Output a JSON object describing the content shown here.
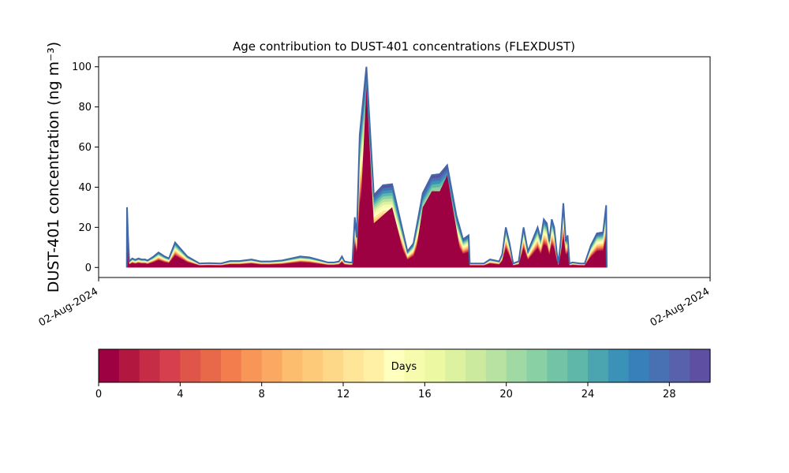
{
  "chart_data": [
    {
      "type": "area",
      "title": "Age contribution to DUST-401 concentrations (FLEXDUST)",
      "ylabel": "DUST-401 concentration (ng m⁻³)",
      "xlabel": "",
      "x_tick_labels": [
        "02-Aug-2024",
        "02-Aug-2024"
      ],
      "y_ticks": [
        0,
        20,
        40,
        60,
        80,
        100
      ],
      "ylim": [
        -5,
        105
      ],
      "xlim": [
        0,
        100
      ],
      "grid": false,
      "legend": "none",
      "x": [
        4.6,
        4.8,
        5.0,
        5.4,
        5.8,
        6.2,
        6.6,
        7.2,
        8.0,
        9.0,
        10.5,
        11.5,
        12.5,
        13.5,
        14.5,
        16.5,
        18.0,
        19.5,
        21.0,
        22.0,
        24.0,
        25.5,
        27.5,
        28.5,
        30.0,
        32.0,
        33.5,
        35.0,
        36.5,
        38.0,
        39.0,
        40.0,
        40.5,
        41.0,
        41.5,
        41.8,
        42.2,
        43.0,
        44.0,
        45.0,
        46.0,
        47.5,
        49.0,
        50.5,
        51.5,
        52.5,
        54.0,
        55.5,
        57.0,
        58.5,
        59.5,
        60.5,
        61.2,
        62.0,
        63.0,
        64.5,
        65.5,
        66.2,
        67.0,
        67.8,
        68.5,
        69.5,
        70.5,
        71.3,
        72.0,
        72.6,
        73.2,
        73.8,
        74.4,
        75.0,
        75.5,
        76.0,
        76.5,
        77.0,
        77.5,
        78.0,
        78.4,
        78.8,
        79.3,
        79.8,
        80.5,
        81.5,
        82.5,
        83.0,
        84.0,
        84.8,
        85.5,
        85.8
      ],
      "series_levels_days": [
        0,
        2,
        4,
        6,
        8,
        10,
        12,
        14,
        16,
        18,
        20,
        22,
        24,
        26,
        28,
        30
      ],
      "total": [
        0,
        30,
        3,
        0,
        3,
        4.5,
        3.5,
        3.5,
        2,
        2.5,
        3.5,
        2.8,
        2.5,
        3,
        3,
        2,
        2.5,
        2.5,
        2,
        2.5,
        2.5,
        2.5,
        2,
        3.5,
        3,
        2.5,
        2.5,
        3,
        3.5,
        3.5,
        4,
        5.5,
        4.5,
        0,
        3.5,
        4.5,
        2,
        3,
        2,
        2,
        3,
        2,
        2,
        1.8,
        1.8,
        1.5,
        1.5,
        2,
        1.8,
        2,
        2.8,
        2,
        2,
        1.8,
        3.5,
        2.8,
        2.5,
        3.5,
        4.5,
        2,
        1.5,
        2.5,
        3,
        2,
        1.5,
        2,
        1.5,
        2.5,
        3,
        3.5,
        2.5,
        3,
        2,
        2,
        2.5,
        2,
        2,
        3,
        2.5,
        2,
        2,
        1.5,
        2,
        2.5,
        2,
        3,
        3,
        0
      ],
      "peaks": [
        {
          "x": 4.6,
          "y": 30
        },
        {
          "x": 42.5,
          "y": 25
        },
        {
          "x": 43.0,
          "y": 66
        },
        {
          "x": 43.8,
          "y": 100
        },
        {
          "x": 45.0,
          "y": 36
        },
        {
          "x": 46.5,
          "y": 41
        },
        {
          "x": 48.0,
          "y": 41.5
        },
        {
          "x": 50.5,
          "y": 8
        },
        {
          "x": 51.5,
          "y": 12
        },
        {
          "x": 53.0,
          "y": 37
        },
        {
          "x": 54.5,
          "y": 46
        },
        {
          "x": 55.8,
          "y": 46.5
        },
        {
          "x": 57.0,
          "y": 51
        },
        {
          "x": 58.5,
          "y": 26
        },
        {
          "x": 59.6,
          "y": 14
        },
        {
          "x": 60.5,
          "y": 16
        },
        {
          "x": 64.0,
          "y": 20
        },
        {
          "x": 66.5,
          "y": 19
        },
        {
          "x": 68.7,
          "y": 20
        },
        {
          "x": 69.5,
          "y": 23.5
        },
        {
          "x": 70.4,
          "y": 23
        },
        {
          "x": 70.8,
          "y": 13.5
        },
        {
          "x": 72.5,
          "y": 32
        },
        {
          "x": 76.0,
          "y": 16.5
        },
        {
          "x": 76.7,
          "y": 17
        },
        {
          "x": 77.1,
          "y": 31
        }
      ],
      "outline_points": [
        [
          4.6,
          0
        ],
        [
          4.65,
          30
        ],
        [
          4.8,
          16
        ],
        [
          5.0,
          3
        ],
        [
          5.5,
          4.5
        ],
        [
          6.0,
          3.8
        ],
        [
          6.5,
          4.5
        ],
        [
          7.0,
          4
        ],
        [
          7.6,
          4
        ],
        [
          8.0,
          3.5
        ],
        [
          9.0,
          5.5
        ],
        [
          9.8,
          7.5
        ],
        [
          10.8,
          5.5
        ],
        [
          11.5,
          4.5
        ],
        [
          12.5,
          12.5
        ],
        [
          13.5,
          9
        ],
        [
          14.5,
          5.5
        ],
        [
          16.5,
          2
        ],
        [
          18.0,
          2.2
        ],
        [
          20.0,
          2
        ],
        [
          21.5,
          3.2
        ],
        [
          23.0,
          3.2
        ],
        [
          25.0,
          4
        ],
        [
          26.5,
          3
        ],
        [
          28.0,
          3
        ],
        [
          30.0,
          3.5
        ],
        [
          31.5,
          4.5
        ],
        [
          33.0,
          5.5
        ],
        [
          34.5,
          5
        ],
        [
          36.0,
          3.8
        ],
        [
          37.5,
          2.5
        ],
        [
          38.5,
          2.5
        ],
        [
          39.3,
          3
        ],
        [
          39.8,
          5.5
        ],
        [
          40.2,
          3
        ],
        [
          41.0,
          2.5
        ],
        [
          41.5,
          2.5
        ],
        [
          41.9,
          25
        ],
        [
          42.2,
          15
        ],
        [
          42.7,
          66
        ],
        [
          43.8,
          100
        ],
        [
          45.0,
          36
        ],
        [
          46.5,
          41
        ],
        [
          48.0,
          41.5
        ],
        [
          50.5,
          8
        ],
        [
          51.5,
          12
        ],
        [
          53.0,
          37
        ],
        [
          54.5,
          46
        ],
        [
          55.8,
          46.5
        ],
        [
          57.0,
          51
        ],
        [
          58.5,
          26
        ],
        [
          59.6,
          14
        ],
        [
          60.5,
          16
        ],
        [
          60.7,
          2
        ],
        [
          62.0,
          2
        ],
        [
          63.0,
          2
        ],
        [
          64.0,
          4
        ],
        [
          64.8,
          3.5
        ],
        [
          65.5,
          3
        ],
        [
          66.0,
          6.5
        ],
        [
          66.6,
          20
        ],
        [
          67.2,
          12
        ],
        [
          67.8,
          2
        ],
        [
          68.7,
          3
        ],
        [
          69.5,
          20
        ],
        [
          70.2,
          8
        ],
        [
          71.0,
          14
        ],
        [
          71.8,
          20
        ],
        [
          72.3,
          14
        ],
        [
          72.8,
          24
        ],
        [
          73.3,
          22
        ],
        [
          73.7,
          13
        ],
        [
          74.1,
          24
        ],
        [
          74.5,
          20
        ],
        [
          74.9,
          8
        ],
        [
          75.2,
          2
        ],
        [
          75.6,
          14
        ],
        [
          76.0,
          32
        ],
        [
          76.4,
          13
        ],
        [
          76.7,
          16
        ],
        [
          77.0,
          2
        ],
        [
          77.5,
          2.5
        ],
        [
          78.8,
          2
        ],
        [
          79.5,
          2
        ],
        [
          80.5,
          11
        ],
        [
          81.5,
          17
        ],
        [
          82.5,
          17.5
        ],
        [
          83.0,
          31
        ],
        [
          83.1,
          0
        ]
      ],
      "core_points": [
        [
          41.9,
          0
        ],
        [
          42.7,
          20
        ],
        [
          43.8,
          90
        ],
        [
          45.0,
          22
        ],
        [
          48.0,
          30
        ],
        [
          50.5,
          0
        ],
        [
          51.5,
          0
        ],
        [
          53.0,
          30
        ],
        [
          54.5,
          38
        ],
        [
          55.8,
          38
        ],
        [
          57.0,
          46
        ],
        [
          59.6,
          0
        ],
        [
          60.5,
          0
        ]
      ]
    },
    {
      "type": "heatmap",
      "title": "",
      "colorbar_label": "Days",
      "ticks": [
        0,
        4,
        8,
        12,
        16,
        20,
        24,
        28
      ],
      "range": [
        0,
        30
      ],
      "bins": 30,
      "colors": [
        "#9e0142",
        "#b2173f",
        "#c62c46",
        "#d6404e",
        "#e0554a",
        "#e86949",
        "#f47d4d",
        "#f89657",
        "#fba962",
        "#fdbd6f",
        "#fdca79",
        "#fed889",
        "#fee597",
        "#fff0a6",
        "#ffffbe",
        "#f7fbad",
        "#edf8a2",
        "#ddf2a0",
        "#ccea9d",
        "#b7e2a1",
        "#a0d9a4",
        "#89d0a4",
        "#73c4a7",
        "#5fb7aa",
        "#4ba5b1",
        "#3b92b9",
        "#3780b9",
        "#4771b2",
        "#5862ab",
        "#5e4fa2"
      ]
    }
  ]
}
